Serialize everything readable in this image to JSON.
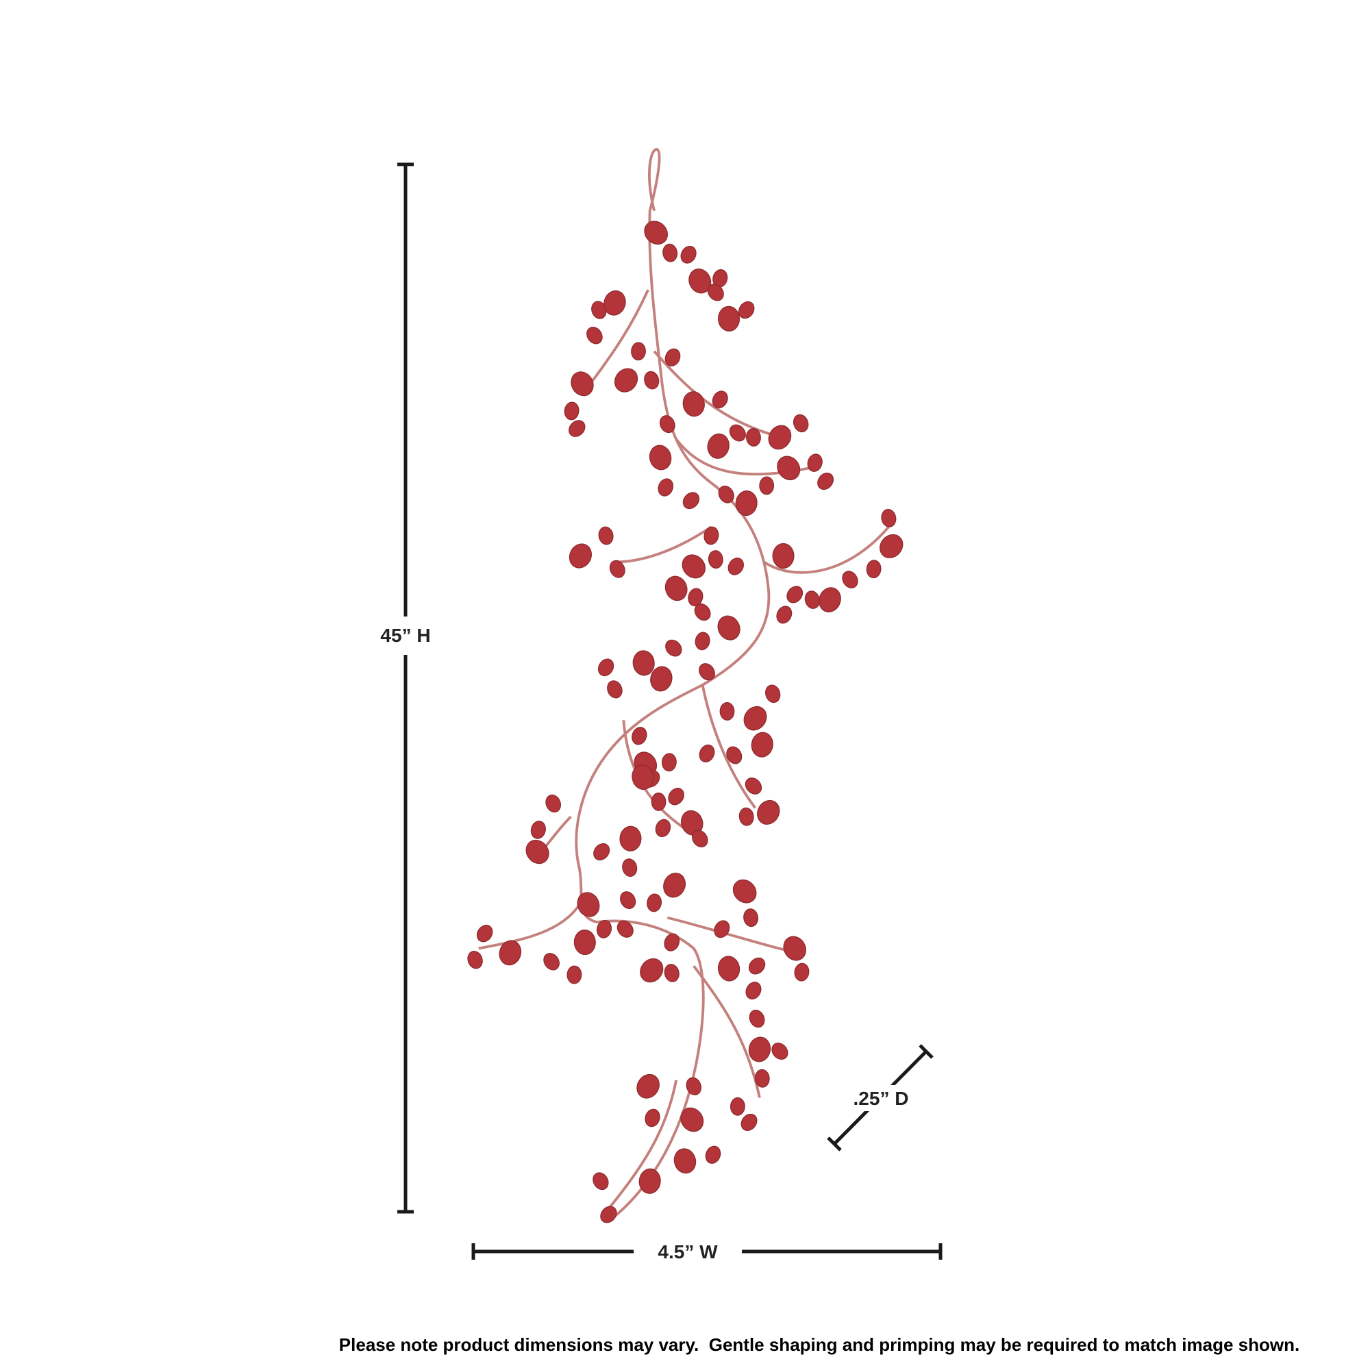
{
  "dimensions": {
    "height": "45” H",
    "width": "4.5” W",
    "depth": ".25” D"
  },
  "note": "Please note product dimensions may vary.  Gentle shaping and primping may be required to match image shown."
}
